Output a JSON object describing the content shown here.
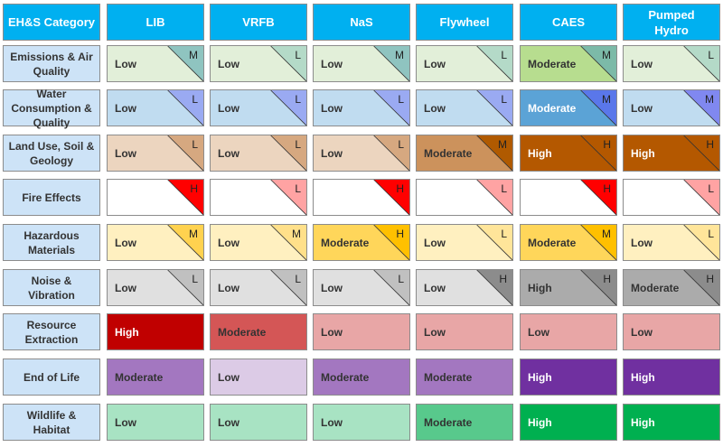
{
  "header": {
    "category_label": "EH&S Category"
  },
  "technologies": [
    "LIB",
    "VRFB",
    "NaS",
    "Flywheel",
    "CAES",
    "Pumped Hydro"
  ],
  "rows": [
    {
      "category": "Emissions & Air Quality",
      "cells": [
        {
          "level": "Low",
          "bg": "#e2efd9",
          "fg": "#333333",
          "corner": "M",
          "corner_color": "#8fc4c0"
        },
        {
          "level": "Low",
          "bg": "#e2efd9",
          "fg": "#333333",
          "corner": "L",
          "corner_color": "#b4dac8"
        },
        {
          "level": "Low",
          "bg": "#e2efd9",
          "fg": "#333333",
          "corner": "M",
          "corner_color": "#8fc4c0"
        },
        {
          "level": "Low",
          "bg": "#e2efd9",
          "fg": "#333333",
          "corner": "L",
          "corner_color": "#b4dac8"
        },
        {
          "level": "Moderate",
          "bg": "#b7dd8f",
          "fg": "#333333",
          "corner": "M",
          "corner_color": "#7cbaa8"
        },
        {
          "level": "Low",
          "bg": "#e2efd9",
          "fg": "#333333",
          "corner": "L",
          "corner_color": "#b4dac8"
        }
      ]
    },
    {
      "category": "Water Consumption & Quality",
      "cells": [
        {
          "level": "Low",
          "bg": "#c0dcf0",
          "fg": "#333333",
          "corner": "L",
          "corner_color": "#9aaaf2"
        },
        {
          "level": "Low",
          "bg": "#c0dcf0",
          "fg": "#333333",
          "corner": "L",
          "corner_color": "#9aaaf2"
        },
        {
          "level": "Low",
          "bg": "#c0dcf0",
          "fg": "#333333",
          "corner": "L",
          "corner_color": "#9aaaf2"
        },
        {
          "level": "Low",
          "bg": "#c0dcf0",
          "fg": "#333333",
          "corner": "L",
          "corner_color": "#9aaaf2"
        },
        {
          "level": "Moderate",
          "bg": "#5ba3d6",
          "fg": "#ffffff",
          "corner": "M",
          "corner_color": "#5a77ea"
        },
        {
          "level": "Low",
          "bg": "#c0dcf0",
          "fg": "#333333",
          "corner": "M",
          "corner_color": "#8088f0"
        }
      ]
    },
    {
      "category": "Land Use, Soil & Geology",
      "cells": [
        {
          "level": "Low",
          "bg": "#ecd5bf",
          "fg": "#333333",
          "corner": "L",
          "corner_color": "#d6a880"
        },
        {
          "level": "Low",
          "bg": "#ecd5bf",
          "fg": "#333333",
          "corner": "L",
          "corner_color": "#d6a880"
        },
        {
          "level": "Low",
          "bg": "#ecd5bf",
          "fg": "#333333",
          "corner": "L",
          "corner_color": "#d6a880"
        },
        {
          "level": "Moderate",
          "bg": "#cc925c",
          "fg": "#333333",
          "corner": "M",
          "corner_color": "#b05a00"
        },
        {
          "level": "High",
          "bg": "#b45800",
          "fg": "#ffffff",
          "corner": "H",
          "corner_color": "#b45800"
        },
        {
          "level": "High",
          "bg": "#b45800",
          "fg": "#ffffff",
          "corner": "H",
          "corner_color": "#b45800"
        }
      ]
    },
    {
      "category": "Fire Effects",
      "cells": [
        {
          "level": "",
          "bg": "#ffffff",
          "fg": "#333333",
          "corner": "H",
          "corner_color": "#ff0000"
        },
        {
          "level": "",
          "bg": "#ffffff",
          "fg": "#333333",
          "corner": "L",
          "corner_color": "#ffa3a3"
        },
        {
          "level": "",
          "bg": "#ffffff",
          "fg": "#333333",
          "corner": "H",
          "corner_color": "#ff0000"
        },
        {
          "level": "",
          "bg": "#ffffff",
          "fg": "#333333",
          "corner": "L",
          "corner_color": "#ffa3a3"
        },
        {
          "level": "",
          "bg": "#ffffff",
          "fg": "#333333",
          "corner": "H",
          "corner_color": "#ff0000"
        },
        {
          "level": "",
          "bg": "#ffffff",
          "fg": "#333333",
          "corner": "L",
          "corner_color": "#ffa3a3"
        }
      ]
    },
    {
      "category": "Hazardous Materials",
      "cells": [
        {
          "level": "Low",
          "bg": "#fff0c0",
          "fg": "#333333",
          "corner": "M",
          "corner_color": "#ffd24f"
        },
        {
          "level": "Low",
          "bg": "#fff0c0",
          "fg": "#333333",
          "corner": "M",
          "corner_color": "#ffe08a"
        },
        {
          "level": "Moderate",
          "bg": "#ffd65a",
          "fg": "#333333",
          "corner": "H",
          "corner_color": "#ffc000"
        },
        {
          "level": "Low",
          "bg": "#fff0c0",
          "fg": "#333333",
          "corner": "L",
          "corner_color": "#ffe59a"
        },
        {
          "level": "Moderate",
          "bg": "#ffd65a",
          "fg": "#333333",
          "corner": "M",
          "corner_color": "#ffc000"
        },
        {
          "level": "Low",
          "bg": "#fff0c0",
          "fg": "#333333",
          "corner": "L",
          "corner_color": "#ffe59a"
        }
      ]
    },
    {
      "category": "Noise & Vibration",
      "cells": [
        {
          "level": "Low",
          "bg": "#e0e0e0",
          "fg": "#333333",
          "corner": "L",
          "corner_color": "#c0c0c0"
        },
        {
          "level": "Low",
          "bg": "#e0e0e0",
          "fg": "#333333",
          "corner": "L",
          "corner_color": "#c0c0c0"
        },
        {
          "level": "Low",
          "bg": "#e0e0e0",
          "fg": "#333333",
          "corner": "L",
          "corner_color": "#c0c0c0"
        },
        {
          "level": "Low",
          "bg": "#e0e0e0",
          "fg": "#333333",
          "corner": "H",
          "corner_color": "#8c8c8c"
        },
        {
          "level": "High",
          "bg": "#ababab",
          "fg": "#333333",
          "corner": "H",
          "corner_color": "#8c8c8c"
        },
        {
          "level": "Moderate",
          "bg": "#ababab",
          "fg": "#333333",
          "corner": "H",
          "corner_color": "#8c8c8c"
        }
      ]
    },
    {
      "category": "Resource Extraction",
      "cells": [
        {
          "level": "High",
          "bg": "#c00000",
          "fg": "#ffffff",
          "corner": "",
          "corner_color": ""
        },
        {
          "level": "Moderate",
          "bg": "#d45656",
          "fg": "#333333",
          "corner": "",
          "corner_color": ""
        },
        {
          "level": "Low",
          "bg": "#e8a6a6",
          "fg": "#333333",
          "corner": "",
          "corner_color": ""
        },
        {
          "level": "Low",
          "bg": "#e8a6a6",
          "fg": "#333333",
          "corner": "",
          "corner_color": ""
        },
        {
          "level": "Low",
          "bg": "#e8a6a6",
          "fg": "#333333",
          "corner": "",
          "corner_color": ""
        },
        {
          "level": "Low",
          "bg": "#e8a6a6",
          "fg": "#333333",
          "corner": "",
          "corner_color": ""
        }
      ]
    },
    {
      "category": "End of Life",
      "cells": [
        {
          "level": "Moderate",
          "bg": "#a377c0",
          "fg": "#333333",
          "corner": "",
          "corner_color": ""
        },
        {
          "level": "Low",
          "bg": "#dccbe6",
          "fg": "#333333",
          "corner": "",
          "corner_color": ""
        },
        {
          "level": "Moderate",
          "bg": "#a377c0",
          "fg": "#333333",
          "corner": "",
          "corner_color": ""
        },
        {
          "level": "Moderate",
          "bg": "#a377c0",
          "fg": "#333333",
          "corner": "",
          "corner_color": ""
        },
        {
          "level": "High",
          "bg": "#7030a0",
          "fg": "#ffffff",
          "corner": "",
          "corner_color": ""
        },
        {
          "level": "High",
          "bg": "#7030a0",
          "fg": "#ffffff",
          "corner": "",
          "corner_color": ""
        }
      ]
    },
    {
      "category": "Wildlife & Habitat",
      "cells": [
        {
          "level": "Low",
          "bg": "#a8e3c3",
          "fg": "#333333",
          "corner": "",
          "corner_color": ""
        },
        {
          "level": "Low",
          "bg": "#a8e3c3",
          "fg": "#333333",
          "corner": "",
          "corner_color": ""
        },
        {
          "level": "Low",
          "bg": "#a8e3c3",
          "fg": "#333333",
          "corner": "",
          "corner_color": ""
        },
        {
          "level": "Moderate",
          "bg": "#58c98c",
          "fg": "#333333",
          "corner": "",
          "corner_color": ""
        },
        {
          "level": "High",
          "bg": "#00b050",
          "fg": "#ffffff",
          "corner": "",
          "corner_color": ""
        },
        {
          "level": "High",
          "bg": "#00b050",
          "fg": "#ffffff",
          "corner": "",
          "corner_color": ""
        }
      ]
    }
  ],
  "colors": {
    "header_bg": "#00b0f0",
    "category_bg": "#cde3f7"
  }
}
